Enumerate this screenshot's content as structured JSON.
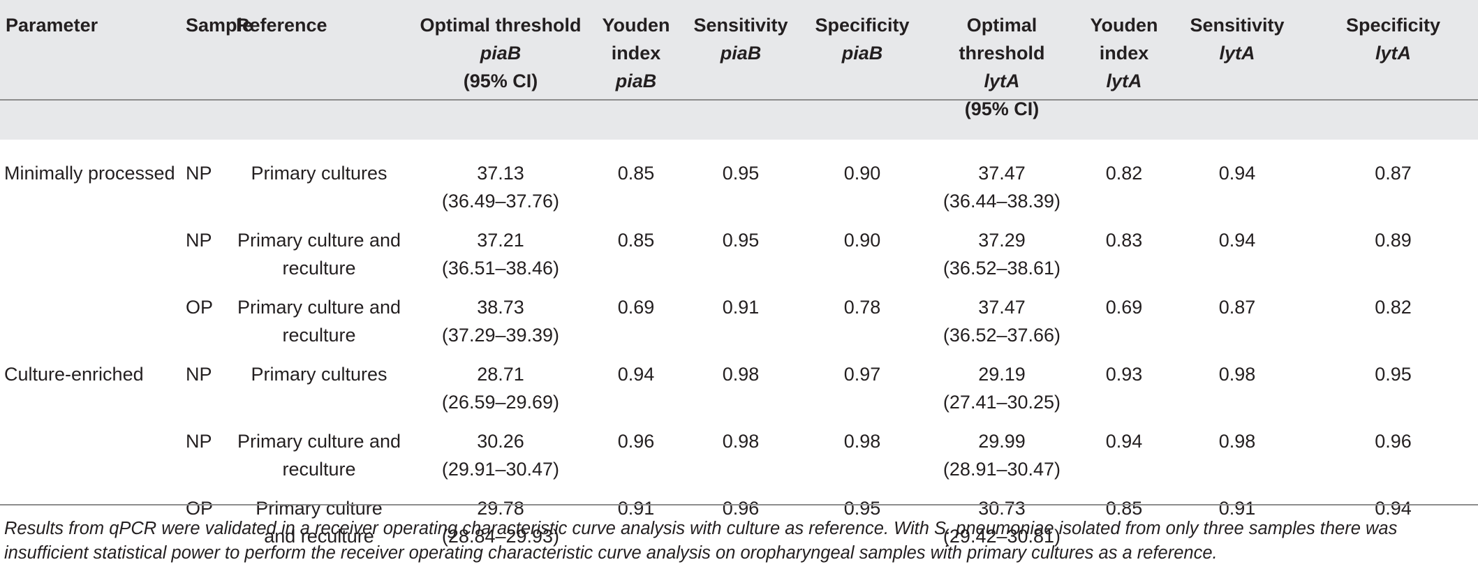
{
  "table": {
    "headers": [
      {
        "lines": [
          "Parameter"
        ]
      },
      {
        "lines": [
          "Sample"
        ]
      },
      {
        "lines": [
          "Reference"
        ]
      },
      {
        "lines": [
          "Optimal threshold",
          "piaB",
          "(95% CI)"
        ],
        "italic_line": 1
      },
      {
        "lines": [
          "Youden",
          "index",
          "piaB"
        ],
        "italic_line": 2
      },
      {
        "lines": [
          "Sensitivity",
          "piaB"
        ],
        "italic_line": 1
      },
      {
        "lines": [
          "Specificity",
          "piaB"
        ],
        "italic_line": 1
      },
      {
        "lines": [
          "Optimal",
          "threshold",
          "lytA",
          "(95% CI)"
        ],
        "italic_line": 2
      },
      {
        "lines": [
          "Youden",
          "index",
          "lytA"
        ],
        "italic_line": 2
      },
      {
        "lines": [
          "Sensitivity",
          "lytA"
        ],
        "italic_line": 1
      },
      {
        "lines": [
          "Specificity",
          "lytA"
        ],
        "italic_line": 1
      }
    ],
    "rows": [
      {
        "parameter": "Minimally processed",
        "sample": "NP",
        "reference": [
          "Primary cultures"
        ],
        "piab_threshold": "37.13",
        "piab_ci": "(36.49–37.76)",
        "piab_youden": "0.85",
        "piab_sens": "0.95",
        "piab_spec": "0.90",
        "lyta_threshold": "37.47",
        "lyta_ci": "(36.44–38.39)",
        "lyta_youden": "0.82",
        "lyta_sens": "0.94",
        "lyta_spec": "0.87"
      },
      {
        "parameter": "",
        "sample": "NP",
        "reference": [
          "Primary culture and",
          "reculture"
        ],
        "piab_threshold": "37.21",
        "piab_ci": "(36.51–38.46)",
        "piab_youden": "0.85",
        "piab_sens": "0.95",
        "piab_spec": "0.90",
        "lyta_threshold": "37.29",
        "lyta_ci": "(36.52–38.61)",
        "lyta_youden": "0.83",
        "lyta_sens": "0.94",
        "lyta_spec": "0.89"
      },
      {
        "parameter": "",
        "sample": "OP",
        "reference": [
          "Primary culture and",
          "reculture"
        ],
        "piab_threshold": "38.73",
        "piab_ci": "(37.29–39.39)",
        "piab_youden": "0.69",
        "piab_sens": "0.91",
        "piab_spec": "0.78",
        "lyta_threshold": "37.47",
        "lyta_ci": "(36.52–37.66)",
        "lyta_youden": "0.69",
        "lyta_sens": "0.87",
        "lyta_spec": "0.82"
      },
      {
        "parameter": "Culture-enriched",
        "sample": "NP",
        "reference": [
          "Primary cultures"
        ],
        "piab_threshold": "28.71",
        "piab_ci": "(26.59–29.69)",
        "piab_youden": "0.94",
        "piab_sens": "0.98",
        "piab_spec": "0.97",
        "lyta_threshold": "29.19",
        "lyta_ci": "(27.41–30.25)",
        "lyta_youden": "0.93",
        "lyta_sens": "0.98",
        "lyta_spec": "0.95"
      },
      {
        "parameter": "",
        "sample": "NP",
        "reference": [
          "Primary culture and",
          "reculture"
        ],
        "piab_threshold": "30.26",
        "piab_ci": "(29.91–30.47)",
        "piab_youden": "0.96",
        "piab_sens": "0.98",
        "piab_spec": "0.98",
        "lyta_threshold": "29.99",
        "lyta_ci": "(28.91–30.47)",
        "lyta_youden": "0.94",
        "lyta_sens": "0.98",
        "lyta_spec": "0.96"
      },
      {
        "parameter": "",
        "sample": "OP",
        "reference": [
          "Primary culture",
          "and reculture"
        ],
        "piab_threshold": "29.78",
        "piab_ci": "(28.84–29.93)",
        "piab_youden": "0.91",
        "piab_sens": "0.96",
        "piab_spec": "0.95",
        "lyta_threshold": "30.73",
        "lyta_ci": "(29.42–30.81)",
        "lyta_youden": "0.85",
        "lyta_sens": "0.91",
        "lyta_spec": "0.94"
      }
    ]
  },
  "footnote": "Results from qPCR were validated in a receiver operating characteristic curve analysis with culture as reference. With S. pneumoniae isolated from only three samples there was insufficient statistical power to perform the receiver operating characteristic curve analysis on oropharyngeal samples with primary cultures as a reference."
}
